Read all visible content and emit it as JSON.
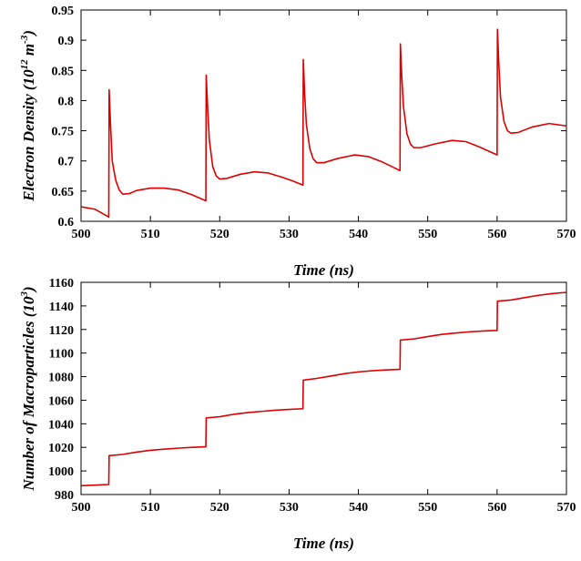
{
  "chart_data": [
    {
      "type": "line",
      "xlabel": "Time (ns)",
      "ylabel": "Electron Density (10^12 m^-3)",
      "ylabel_parts": {
        "pre": "Electron Density (10",
        "sup1": "12",
        "mid": " m",
        "sup2": "-3",
        "post": ")"
      },
      "xlim": [
        500,
        570
      ],
      "ylim": [
        0.6,
        0.95
      ],
      "xticks": [
        "500",
        "510",
        "520",
        "530",
        "540",
        "550",
        "560",
        "570"
      ],
      "yticks": [
        "0.6",
        "0.65",
        "0.7",
        "0.75",
        "0.8",
        "0.85",
        "0.9",
        "0.95"
      ],
      "grid": false,
      "color": "#dd0000",
      "series": [
        {
          "x": [
            500,
            502,
            504,
            504.05,
            504.25,
            504.5,
            505,
            505.5,
            506,
            507,
            508,
            510,
            512,
            514,
            516,
            518,
            518.05,
            518.25,
            518.5,
            519,
            519.5,
            520,
            521,
            523,
            525,
            527,
            529,
            530.5,
            532,
            532.05,
            532.25,
            532.5,
            533,
            533.5,
            534,
            535,
            537,
            539.5,
            541.5,
            543.5,
            546,
            546.05,
            546.25,
            546.5,
            547,
            547.5,
            548,
            549,
            551,
            553.5,
            555.5,
            557.5,
            560,
            560.05,
            560.25,
            560.5,
            561,
            561.5,
            562,
            563,
            565,
            567.5,
            570
          ],
          "y": [
            0.624,
            0.62,
            0.607,
            0.818,
            0.76,
            0.7,
            0.668,
            0.652,
            0.645,
            0.646,
            0.651,
            0.655,
            0.655,
            0.652,
            0.644,
            0.634,
            0.842,
            0.79,
            0.735,
            0.69,
            0.675,
            0.67,
            0.671,
            0.678,
            0.682,
            0.68,
            0.673,
            0.667,
            0.66,
            0.868,
            0.81,
            0.76,
            0.72,
            0.703,
            0.697,
            0.697,
            0.704,
            0.71,
            0.707,
            0.698,
            0.684,
            0.894,
            0.84,
            0.79,
            0.745,
            0.728,
            0.722,
            0.722,
            0.728,
            0.734,
            0.732,
            0.723,
            0.71,
            0.918,
            0.86,
            0.805,
            0.765,
            0.75,
            0.746,
            0.747,
            0.756,
            0.762,
            0.758
          ]
        }
      ]
    },
    {
      "type": "line",
      "xlabel": "Time (ns)",
      "ylabel": "Number of Macroparticles (10^3)",
      "ylabel_parts": {
        "pre": "Number of Macroparticles (10",
        "sup1": "3",
        "mid": "",
        "sup2": "",
        "post": ")"
      },
      "xlim": [
        500,
        570
      ],
      "ylim": [
        980,
        1160
      ],
      "xticks": [
        "500",
        "510",
        "520",
        "530",
        "540",
        "550",
        "560",
        "570"
      ],
      "yticks": [
        "980",
        "1000",
        "1020",
        "1040",
        "1060",
        "1080",
        "1100",
        "1120",
        "1140",
        "1160"
      ],
      "grid": false,
      "color": "#dd0000",
      "series": [
        {
          "x": [
            500,
            502,
            504,
            504.05,
            506,
            508,
            510,
            512,
            514,
            516,
            518,
            518.05,
            520,
            522,
            524,
            526,
            528,
            530,
            532,
            532.05,
            534,
            536,
            538,
            540,
            542,
            544,
            546,
            546.05,
            548,
            550,
            552,
            554,
            556,
            558,
            560,
            560.05,
            562,
            564,
            566,
            568,
            570
          ],
          "y": [
            987.5,
            988,
            988.5,
            1013,
            1014,
            1016,
            1017.5,
            1018.5,
            1019.3,
            1020,
            1020.5,
            1045,
            1046,
            1048,
            1049.5,
            1050.5,
            1051.5,
            1052.2,
            1052.8,
            1077,
            1078.5,
            1080.5,
            1082.5,
            1084,
            1085,
            1085.7,
            1086.2,
            1111,
            1112,
            1114,
            1115.8,
            1117,
            1118,
            1118.7,
            1119.2,
            1144,
            1145,
            1147,
            1149,
            1150.5,
            1151.5
          ]
        }
      ]
    }
  ]
}
